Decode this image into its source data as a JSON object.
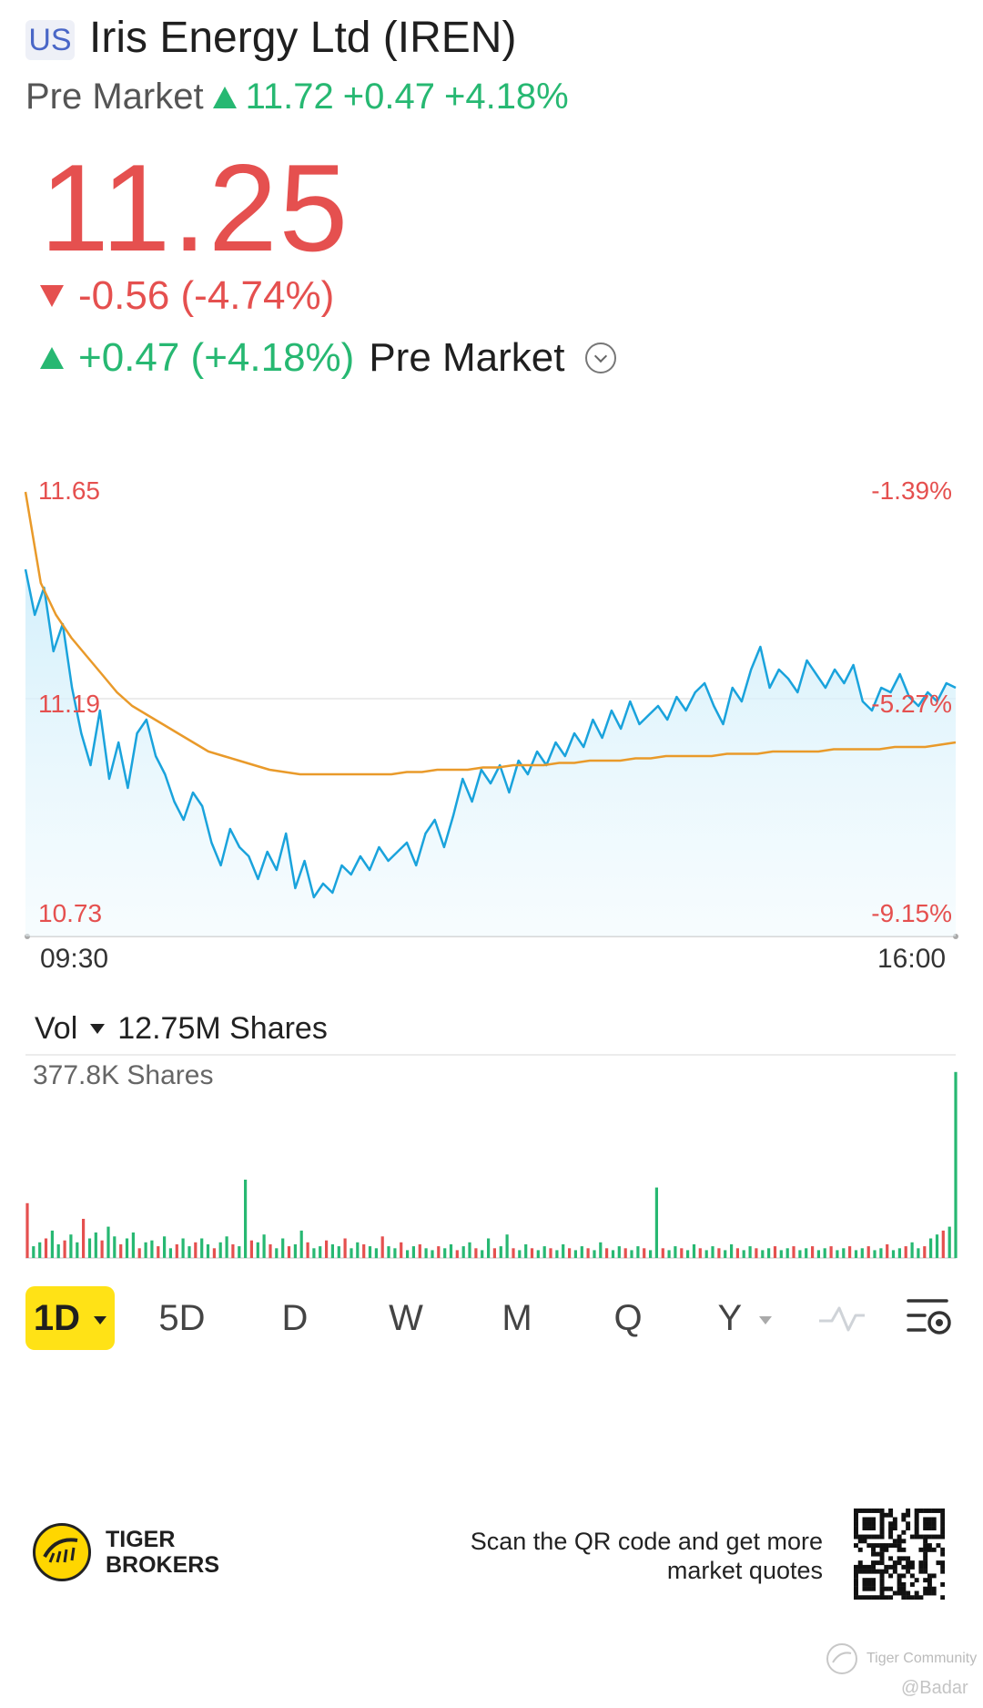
{
  "header": {
    "market_badge": "US",
    "title": "Iris Energy Ltd (IREN)",
    "premarket_label": "Pre Market",
    "premarket_price": "11.72",
    "premarket_change": "+0.47",
    "premarket_change_pct": "+4.18%"
  },
  "quote": {
    "price": "11.25",
    "change": "-0.56 (-4.74%)",
    "pm_change": "+0.47 (+4.18%)",
    "pm_label": "Pre Market"
  },
  "colors": {
    "up": "#27b872",
    "down": "#e5504f",
    "price_line": "#1aa3dc",
    "avg_line": "#e99a2a",
    "active_period": "#ffe216"
  },
  "chart_data": [
    {
      "type": "line",
      "x_ticks": [
        "09:30",
        "16:00"
      ],
      "y_labels_left": [
        "11.65",
        "11.19",
        "10.73"
      ],
      "y_labels_right": [
        "-1.39%",
        "-5.27%",
        "-9.15%"
      ],
      "ylim": [
        10.73,
        11.65
      ],
      "series": [
        {
          "values": [
            11.48,
            11.38,
            11.44,
            11.3,
            11.36,
            11.22,
            11.12,
            11.05,
            11.17,
            11.02,
            11.1,
            11.0,
            11.12,
            11.15,
            11.07,
            11.03,
            10.97,
            10.93,
            10.99,
            10.96,
            10.88,
            10.83,
            10.91,
            10.87,
            10.85,
            10.8,
            10.86,
            10.82,
            10.9,
            10.78,
            10.84,
            10.76,
            10.79,
            10.77,
            10.83,
            10.81,
            10.85,
            10.82,
            10.87,
            10.84,
            10.86,
            10.88,
            10.83,
            10.9,
            10.93,
            10.87,
            10.94,
            11.02,
            10.97,
            11.04,
            11.01,
            11.05,
            10.99,
            11.06,
            11.03,
            11.08,
            11.05,
            11.1,
            11.07,
            11.12,
            11.09,
            11.15,
            11.11,
            11.17,
            11.13,
            11.19,
            11.14,
            11.16,
            11.18,
            11.15,
            11.2,
            11.17,
            11.21,
            11.23,
            11.18,
            11.14,
            11.22,
            11.19,
            11.26,
            11.31,
            11.22,
            11.26,
            11.24,
            11.21,
            11.28,
            11.25,
            11.22,
            11.26,
            11.23,
            11.27,
            11.19,
            11.17,
            11.22,
            11.21,
            11.25,
            11.2,
            11.18,
            11.21,
            11.19,
            11.23,
            11.22
          ]
        },
        {
          "values": [
            11.65,
            11.45,
            11.38,
            11.33,
            11.29,
            11.25,
            11.21,
            11.18,
            11.16,
            11.14,
            11.12,
            11.1,
            11.08,
            11.07,
            11.06,
            11.05,
            11.04,
            11.035,
            11.03,
            11.03,
            11.03,
            11.03,
            11.03,
            11.03,
            11.03,
            11.035,
            11.035,
            11.04,
            11.04,
            11.04,
            11.045,
            11.045,
            11.05,
            11.05,
            11.05,
            11.055,
            11.055,
            11.06,
            11.06,
            11.06,
            11.065,
            11.065,
            11.07,
            11.07,
            11.07,
            11.07,
            11.075,
            11.075,
            11.075,
            11.08,
            11.08,
            11.08,
            11.08,
            11.085,
            11.085,
            11.085,
            11.085,
            11.09,
            11.09,
            11.09,
            11.095,
            11.1
          ]
        }
      ]
    },
    {
      "type": "bar",
      "values": [
        0.28,
        0.06,
        0.08,
        0.1,
        0.14,
        0.07,
        0.09,
        0.12,
        0.08,
        0.2,
        0.1,
        0.13,
        0.09,
        0.16,
        0.11,
        0.07,
        0.1,
        0.13,
        0.05,
        0.08,
        0.09,
        0.06,
        0.11,
        0.05,
        0.07,
        0.1,
        0.06,
        0.08,
        0.1,
        0.07,
        0.05,
        0.08,
        0.11,
        0.07,
        0.06,
        0.4,
        0.09,
        0.08,
        0.12,
        0.07,
        0.05,
        0.1,
        0.06,
        0.07,
        0.14,
        0.08,
        0.05,
        0.06,
        0.09,
        0.07,
        0.06,
        0.1,
        0.05,
        0.08,
        0.07,
        0.06,
        0.05,
        0.11,
        0.06,
        0.05,
        0.08,
        0.04,
        0.06,
        0.07,
        0.05,
        0.04,
        0.06,
        0.05,
        0.07,
        0.04,
        0.06,
        0.08,
        0.05,
        0.04,
        0.1,
        0.05,
        0.06,
        0.12,
        0.05,
        0.04,
        0.07,
        0.05,
        0.04,
        0.06,
        0.05,
        0.04,
        0.07,
        0.05,
        0.04,
        0.06,
        0.05,
        0.04,
        0.08,
        0.05,
        0.04,
        0.06,
        0.05,
        0.04,
        0.06,
        0.05,
        0.04,
        0.36,
        0.05,
        0.04,
        0.06,
        0.05,
        0.04,
        0.07,
        0.05,
        0.04,
        0.06,
        0.05,
        0.04,
        0.07,
        0.05,
        0.04,
        0.06,
        0.05,
        0.04,
        0.05,
        0.06,
        0.04,
        0.05,
        0.06,
        0.04,
        0.05,
        0.06,
        0.04,
        0.05,
        0.06,
        0.04,
        0.05,
        0.06,
        0.04,
        0.05,
        0.06,
        0.04,
        0.05,
        0.07,
        0.04,
        0.05,
        0.06,
        0.08,
        0.05,
        0.06,
        0.1,
        0.12,
        0.14,
        0.16,
        0.95
      ]
    }
  ],
  "volume": {
    "label": "Vol",
    "total": "12.75M Shares",
    "max_label": "377.8K Shares"
  },
  "periods": {
    "p1d": "1D",
    "p5d": "5D",
    "pd": "D",
    "pw": "W",
    "pm": "M",
    "pq": "Q",
    "py": "Y"
  },
  "footer": {
    "brand_line1": "TIGER",
    "brand_line2": "BROKERS",
    "scan_text": "Scan the QR code and get more market quotes",
    "community": "Tiger Community",
    "watermark": "@Badar"
  }
}
